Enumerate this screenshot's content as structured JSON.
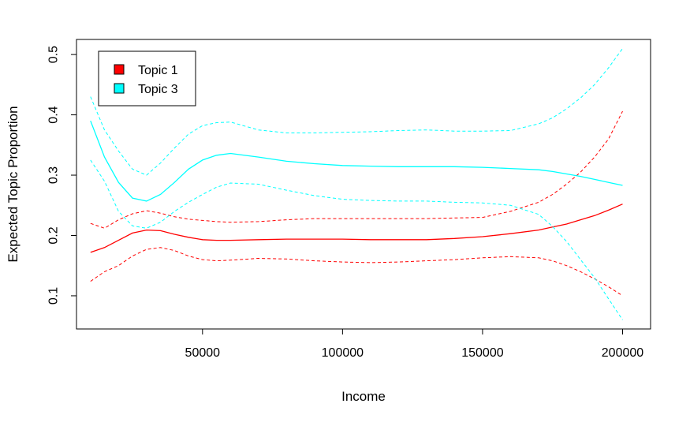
{
  "chart_data": {
    "type": "line",
    "title": "",
    "xlabel": "Income",
    "ylabel": "Expected Topic Proportion",
    "xlim": [
      5000,
      210000
    ],
    "ylim": [
      0.045,
      0.525
    ],
    "x_ticks": [
      50000,
      100000,
      150000,
      200000
    ],
    "x_tick_labels": [
      "50000",
      "100000",
      "150000",
      "200000"
    ],
    "y_ticks": [
      0.1,
      0.2,
      0.3,
      0.4,
      0.5
    ],
    "y_tick_labels": [
      "0.1",
      "0.2",
      "0.3",
      "0.4",
      "0.5"
    ],
    "grid": false,
    "legend_position": "top-left",
    "x": [
      10000,
      15000,
      20000,
      25000,
      30000,
      35000,
      40000,
      45000,
      50000,
      55000,
      60000,
      70000,
      80000,
      90000,
      100000,
      110000,
      120000,
      130000,
      140000,
      150000,
      160000,
      170000,
      175000,
      180000,
      185000,
      190000,
      195000,
      200000
    ],
    "series": [
      {
        "name": "Topic 1",
        "color": "#ff0000",
        "values": [
          0.172,
          0.18,
          0.192,
          0.204,
          0.209,
          0.208,
          0.202,
          0.197,
          0.193,
          0.192,
          0.192,
          0.193,
          0.194,
          0.194,
          0.194,
          0.193,
          0.193,
          0.193,
          0.195,
          0.198,
          0.203,
          0.209,
          0.214,
          0.219,
          0.226,
          0.233,
          0.242,
          0.252
        ],
        "upper": [
          0.22,
          0.212,
          0.226,
          0.236,
          0.241,
          0.237,
          0.231,
          0.227,
          0.225,
          0.223,
          0.222,
          0.223,
          0.226,
          0.228,
          0.228,
          0.228,
          0.228,
          0.228,
          0.229,
          0.23,
          0.24,
          0.255,
          0.268,
          0.285,
          0.305,
          0.33,
          0.36,
          0.406
        ],
        "lower": [
          0.124,
          0.14,
          0.15,
          0.166,
          0.177,
          0.18,
          0.175,
          0.166,
          0.16,
          0.158,
          0.159,
          0.162,
          0.161,
          0.158,
          0.156,
          0.155,
          0.156,
          0.158,
          0.16,
          0.163,
          0.165,
          0.163,
          0.158,
          0.15,
          0.14,
          0.128,
          0.115,
          0.1
        ]
      },
      {
        "name": "Topic 3",
        "color": "#00ffff",
        "values": [
          0.39,
          0.33,
          0.288,
          0.262,
          0.257,
          0.268,
          0.288,
          0.31,
          0.325,
          0.333,
          0.336,
          0.33,
          0.323,
          0.319,
          0.316,
          0.315,
          0.314,
          0.314,
          0.314,
          0.313,
          0.311,
          0.309,
          0.306,
          0.302,
          0.298,
          0.293,
          0.288,
          0.283
        ],
        "upper": [
          0.43,
          0.375,
          0.34,
          0.31,
          0.3,
          0.32,
          0.345,
          0.368,
          0.382,
          0.387,
          0.388,
          0.375,
          0.37,
          0.37,
          0.371,
          0.372,
          0.374,
          0.375,
          0.373,
          0.373,
          0.374,
          0.385,
          0.395,
          0.41,
          0.428,
          0.45,
          0.478,
          0.51
        ],
        "lower": [
          0.325,
          0.29,
          0.24,
          0.216,
          0.212,
          0.222,
          0.24,
          0.255,
          0.268,
          0.28,
          0.287,
          0.285,
          0.275,
          0.266,
          0.26,
          0.258,
          0.257,
          0.257,
          0.255,
          0.254,
          0.25,
          0.235,
          0.215,
          0.19,
          0.16,
          0.13,
          0.095,
          0.06
        ]
      }
    ]
  }
}
